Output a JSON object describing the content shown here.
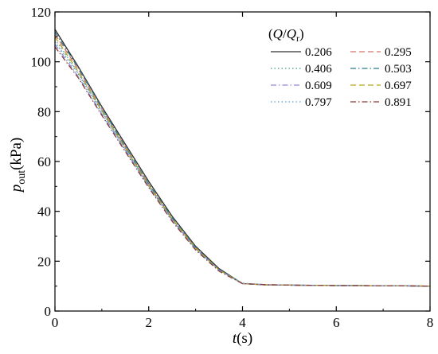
{
  "chart_data": {
    "type": "line",
    "xlabel": {
      "main": "t",
      "unit": "(s)"
    },
    "ylabel": {
      "main": "p",
      "sub": "out",
      "unit": "(kPa)"
    },
    "xlim": [
      0,
      8
    ],
    "ylim": [
      0,
      120
    ],
    "xticks": [
      "0",
      "2",
      "4",
      "6",
      "8"
    ],
    "yticks": [
      "0",
      "20",
      "40",
      "60",
      "80",
      "100",
      "120"
    ],
    "grid": false,
    "legend": {
      "placement": "top-right",
      "title": {
        "open": "(",
        "q": "Q",
        "slash": "/",
        "qr": "Q",
        "sub": "r",
        "close": ")"
      }
    },
    "series": [
      {
        "name": "0.206",
        "color": "#303030",
        "dash": "solid",
        "x": [
          0,
          0.5,
          1,
          1.5,
          2,
          2.5,
          3,
          3.5,
          4,
          4.5,
          5,
          5.5,
          6,
          6.5,
          7,
          7.5,
          8
        ],
        "y": [
          113,
          98,
          82,
          67,
          52,
          38,
          26,
          17,
          11,
          10.5,
          10.4,
          10.3,
          10.2,
          10.2,
          10.1,
          10.1,
          10
        ]
      },
      {
        "name": "0.295",
        "color": "#d9736a",
        "dash": "dash",
        "x": [
          0,
          0.5,
          1,
          1.5,
          2,
          2.5,
          3,
          3.5,
          4,
          4.5,
          5,
          5.5,
          6,
          6.5,
          7,
          7.5,
          8
        ],
        "y": [
          111,
          97,
          81,
          66,
          51,
          37,
          25.5,
          16.5,
          11,
          10.5,
          10.4,
          10.3,
          10.2,
          10.2,
          10.1,
          10.1,
          10
        ]
      },
      {
        "name": "0.406",
        "color": "#3f9a82",
        "dash": "dot",
        "x": [
          0,
          0.5,
          1,
          1.5,
          2,
          2.5,
          3,
          3.5,
          4,
          4.5,
          5,
          5.5,
          6,
          6.5,
          7,
          7.5,
          8
        ],
        "y": [
          108,
          95,
          80,
          65,
          50.5,
          37,
          25,
          16.5,
          11,
          10.6,
          10.4,
          10.3,
          10.2,
          10.2,
          10.1,
          10.1,
          10
        ]
      },
      {
        "name": "0.503",
        "color": "#2f7a8a",
        "dash": "dashdot",
        "x": [
          0,
          0.5,
          1,
          1.5,
          2,
          2.5,
          3,
          3.5,
          4,
          4.5,
          5,
          5.5,
          6,
          6.5,
          7,
          7.5,
          8
        ],
        "y": [
          112,
          97.5,
          81.5,
          66,
          51,
          37.5,
          25.5,
          16.5,
          11,
          10.5,
          10.4,
          10.3,
          10.2,
          10.2,
          10.1,
          10.1,
          10
        ]
      },
      {
        "name": "0.609",
        "color": "#8c8ad6",
        "dash": "dashdot",
        "x": [
          0,
          0.5,
          1,
          1.5,
          2,
          2.5,
          3,
          3.5,
          4,
          4.5,
          5,
          5.5,
          6,
          6.5,
          7,
          7.5,
          8
        ],
        "y": [
          107,
          94,
          79,
          64.5,
          50,
          36.5,
          25,
          16.5,
          11,
          10.6,
          10.4,
          10.3,
          10.2,
          10.2,
          10.1,
          10.1,
          10
        ]
      },
      {
        "name": "0.697",
        "color": "#b8a620",
        "dash": "dash",
        "x": [
          0,
          0.5,
          1,
          1.5,
          2,
          2.5,
          3,
          3.5,
          4,
          4.5,
          5,
          5.5,
          6,
          6.5,
          7,
          7.5,
          8
        ],
        "y": [
          110,
          96,
          80.5,
          65.5,
          50.5,
          37,
          25.2,
          16.5,
          11,
          10.5,
          10.4,
          10.3,
          10.2,
          10.2,
          10.1,
          10.1,
          10
        ]
      },
      {
        "name": "0.797",
        "color": "#5aa0d8",
        "dash": "dot",
        "x": [
          0,
          0.5,
          1,
          1.5,
          2,
          2.5,
          3,
          3.5,
          4,
          4.5,
          5,
          5.5,
          6,
          6.5,
          7,
          7.5,
          8
        ],
        "y": [
          109,
          95.5,
          80,
          65,
          50,
          36.5,
          25,
          16.5,
          11.2,
          10.6,
          10.4,
          10.3,
          10.2,
          10.2,
          10.1,
          10.1,
          10
        ]
      },
      {
        "name": "0.891",
        "color": "#8a3a3a",
        "dash": "dashdot",
        "x": [
          0,
          0.5,
          1,
          1.5,
          2,
          2.5,
          3,
          3.5,
          4,
          4.5,
          5,
          5.5,
          6,
          6.5,
          7,
          7.5,
          8
        ],
        "y": [
          106,
          93.5,
          78.5,
          64,
          49.5,
          36,
          24.5,
          16,
          11,
          10.6,
          10.4,
          10.3,
          10.2,
          10.2,
          10.1,
          10.1,
          10
        ]
      }
    ]
  }
}
